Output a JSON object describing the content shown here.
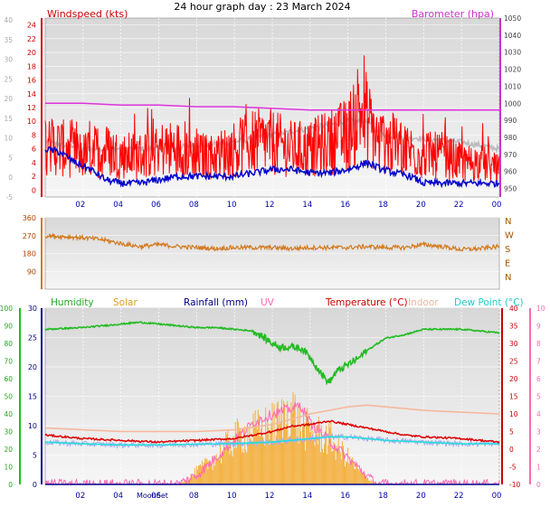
{
  "title": "24 hour graph day : 23 March 2024",
  "colors": {
    "windspeed": "#ff0000",
    "gust_trace": "#0000cc",
    "barometer": "#dd33dd",
    "temp_ghost": "#bbbbbb",
    "direction": "#d27a1f",
    "humidity": "#22bb22",
    "solar": "#f5a623",
    "rainfall": "#000088",
    "uv": "#ff69b4",
    "temperature": "#dd0000",
    "indoor": "#f6b89a",
    "dewpoint": "#22dddd",
    "plot_bg": "#e6e6e6"
  },
  "chart_data": [
    {
      "id": "wind",
      "type": "line",
      "title": "24 hour graph day : 23 March 2024",
      "x_ticks": [
        "02",
        "04",
        "06",
        "08",
        "10",
        "12",
        "14",
        "16",
        "18",
        "20",
        "22",
        "00"
      ],
      "left_outer_axis": {
        "ticks": [
          -5,
          0,
          5,
          10,
          15,
          20,
          25,
          30,
          35,
          40
        ]
      },
      "left_axis": {
        "label": "Windspeed (kts)",
        "ticks": [
          0,
          2,
          4,
          6,
          8,
          10,
          12,
          14,
          16,
          18,
          20,
          22,
          24
        ],
        "ylim": [
          -1,
          25
        ]
      },
      "right_axis": {
        "label": "Barometer (hpa)",
        "ticks": [
          950,
          960,
          970,
          980,
          990,
          1000,
          1010,
          1020,
          1030,
          1040,
          1050
        ],
        "ylim": [
          945,
          1050
        ]
      },
      "series": [
        {
          "name": "Windspeed (kts)",
          "x": [
            0,
            1,
            2,
            3,
            4,
            5,
            6,
            7,
            8,
            9,
            10,
            11,
            12,
            13,
            14,
            15,
            16,
            16.6,
            17,
            17.6,
            18,
            19,
            20,
            21,
            22,
            23,
            24
          ],
          "y": [
            7,
            6,
            5,
            6,
            5,
            5,
            6,
            6,
            5,
            5,
            6,
            7,
            7,
            6,
            6,
            7,
            8,
            12,
            10,
            7,
            7,
            6,
            5,
            5,
            4,
            4,
            3
          ]
        },
        {
          "name": "Wind (low trace)",
          "x": [
            0,
            0.8,
            1.6,
            2.4,
            3.2,
            4,
            5,
            6,
            7,
            8,
            9,
            10,
            11,
            12,
            13,
            14,
            15,
            16,
            17,
            17.8,
            18.5,
            19.3,
            20,
            21,
            22,
            23,
            24
          ],
          "y": [
            6,
            5.5,
            4,
            3,
            1.5,
            1,
            1,
            1.5,
            2,
            2,
            2,
            2,
            2.5,
            3,
            3,
            2.5,
            2.5,
            3,
            4,
            3,
            2.5,
            2,
            1,
            1,
            1,
            1,
            1
          ]
        },
        {
          "name": "Barometer (hpa)",
          "x": [
            0,
            2,
            4,
            6,
            8,
            10,
            12,
            14,
            16,
            18,
            20,
            22,
            24
          ],
          "y": [
            1000,
            1000,
            999,
            999,
            998,
            998,
            997,
            996,
            996,
            996,
            996,
            996,
            996
          ]
        },
        {
          "name": "Temperature (grey)",
          "x": [
            0,
            2,
            4,
            6,
            8,
            10,
            12,
            14,
            15,
            16,
            17,
            18,
            20,
            22,
            24
          ],
          "y": [
            7,
            6,
            6,
            6,
            6.5,
            7,
            8,
            9,
            9.5,
            10,
            10,
            8,
            7.5,
            7,
            6
          ]
        }
      ]
    },
    {
      "id": "direction",
      "type": "line",
      "x_ticks": [
        "02",
        "04",
        "06",
        "08",
        "10",
        "12",
        "14",
        "16",
        "18",
        "20",
        "22",
        "00"
      ],
      "left_axis": {
        "ticks": [
          90,
          180,
          270,
          360
        ],
        "ylim": [
          0,
          360
        ]
      },
      "right_axis": {
        "ticks": [
          "N",
          "W",
          "S",
          "E",
          "N"
        ]
      },
      "series": [
        {
          "name": "Wind direction",
          "x": [
            0,
            1,
            2,
            3,
            4,
            5,
            6,
            7,
            8,
            9,
            10,
            11,
            12,
            13,
            14,
            15,
            16,
            17,
            18,
            19,
            20,
            21,
            22,
            23,
            24
          ],
          "y": [
            270,
            265,
            260,
            250,
            230,
            215,
            225,
            215,
            210,
            205,
            210,
            210,
            210,
            205,
            210,
            210,
            210,
            215,
            210,
            210,
            225,
            215,
            200,
            205,
            215
          ]
        }
      ]
    },
    {
      "id": "weather",
      "type": "line",
      "x_ticks": [
        "02",
        "04",
        "06",
        "08",
        "10",
        "12",
        "14",
        "16",
        "18",
        "20",
        "22",
        "00"
      ],
      "left_axes": [
        {
          "label": "Humidity",
          "ticks": [
            0,
            10,
            20,
            30,
            40,
            50,
            60,
            70,
            80,
            90,
            100
          ]
        },
        {
          "label": "Rainfall (mm)",
          "ticks": [
            0,
            5,
            10,
            15,
            20,
            25,
            30
          ],
          "ylim": [
            0,
            30
          ]
        }
      ],
      "right_axes": [
        {
          "label": "Temperature (°C)",
          "ticks": [
            -10,
            -5,
            0,
            5,
            10,
            15,
            20,
            25,
            30,
            35,
            40
          ],
          "ylim": [
            -10,
            40
          ]
        },
        {
          "label": "UV",
          "ticks": [
            0,
            1,
            2,
            3,
            4,
            5,
            6,
            7,
            8,
            9,
            10
          ],
          "ylim": [
            0,
            10
          ]
        }
      ],
      "legend": [
        "Humidity",
        "Solar",
        "Rainfall (mm)",
        "UV",
        "Temperature (°C)",
        "Indoor",
        "Dew Point (°C)"
      ],
      "annotations": [
        "MoonSet"
      ],
      "series": [
        {
          "name": "Humidity",
          "x": [
            0,
            2,
            4,
            5,
            6,
            7,
            8,
            9,
            10,
            11,
            11.6,
            12,
            12.4,
            13,
            13.6,
            14,
            14.4,
            14.8,
            15,
            15.4,
            16,
            16.6,
            17,
            18,
            19,
            20,
            22,
            24
          ],
          "y": [
            88,
            89,
            91,
            92,
            91,
            90,
            89,
            89,
            88,
            87,
            83,
            80,
            78,
            78,
            77,
            72,
            66,
            60,
            58,
            64,
            68,
            72,
            76,
            83,
            85,
            88,
            88,
            86
          ]
        },
        {
          "name": "Temperature (°C)",
          "x": [
            0,
            2,
            4,
            6,
            8,
            10,
            12,
            13,
            14,
            15,
            16,
            17,
            18,
            19,
            20,
            22,
            24
          ],
          "y": [
            4,
            3,
            2.5,
            2,
            2.5,
            3,
            5,
            6.5,
            7,
            8,
            7,
            6,
            5,
            4,
            3.5,
            3,
            2
          ]
        },
        {
          "name": "Indoor",
          "x": [
            0,
            2,
            4,
            6,
            8,
            10,
            12,
            14,
            16,
            17,
            18,
            19,
            20,
            22,
            24
          ],
          "y": [
            6,
            5.5,
            5,
            5,
            5,
            5.5,
            7,
            10,
            12,
            12.5,
            12,
            11.5,
            11,
            10.5,
            10
          ]
        },
        {
          "name": "Dew Point (°C)",
          "x": [
            0,
            2,
            4,
            6,
            8,
            10,
            12,
            14,
            15,
            16,
            17,
            18,
            20,
            22,
            24
          ],
          "y": [
            2,
            1.5,
            1.2,
            1.2,
            1.4,
            1.6,
            2,
            3,
            3.5,
            3.5,
            3,
            2.5,
            2,
            1.5,
            1.5
          ]
        },
        {
          "name": "UV",
          "x": [
            0,
            7,
            8,
            9,
            10,
            11,
            12,
            13,
            13.5,
            14,
            15,
            16,
            17,
            17.5,
            24
          ],
          "y": [
            0,
            0,
            0.5,
            1.5,
            2.5,
            3.5,
            4,
            4.3,
            4.5,
            3.5,
            2.5,
            1.5,
            0.5,
            0,
            0
          ]
        },
        {
          "name": "Solar",
          "x": [
            0,
            7,
            7.6,
            8,
            9,
            10,
            11,
            12,
            12.6,
            13,
            13.4,
            14,
            15,
            16,
            16.6,
            17,
            17.6,
            24
          ],
          "y": [
            0,
            0,
            1,
            2,
            4,
            7,
            8,
            9,
            10,
            12,
            9,
            8,
            7,
            4,
            2,
            1,
            0,
            0
          ]
        },
        {
          "name": "Rainfall (mm)",
          "x": [
            0,
            24
          ],
          "y": [
            0,
            0
          ]
        }
      ]
    }
  ]
}
